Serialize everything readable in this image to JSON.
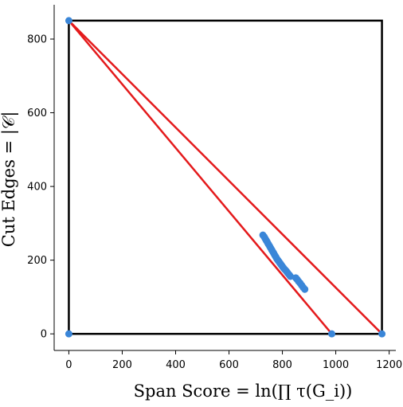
{
  "chart_data": {
    "type": "scatter",
    "title": "",
    "xlabel": "Span Score = ln(∏ τ(G_i))",
    "ylabel": "Cut Edges = |𝒞|",
    "xlim": [
      -55,
      1225
    ],
    "ylim": [
      -45,
      893
    ],
    "xticks": [
      0,
      200,
      400,
      600,
      800,
      1000,
      1200
    ],
    "yticks": [
      0,
      200,
      400,
      600,
      800
    ],
    "grid": false,
    "legend": "none",
    "colors": {
      "points": "#3a86d8",
      "red_lines": "#e41a1c",
      "box": "#000000"
    },
    "box": {
      "x": [
        0,
        1173
      ],
      "y": [
        0,
        850
      ]
    },
    "red_lines": [
      {
        "from": [
          0,
          850
        ],
        "to": [
          985,
          0
        ]
      },
      {
        "from": [
          0,
          850
        ],
        "to": [
          1173,
          0
        ]
      }
    ],
    "corner_points": [
      {
        "x": 0,
        "y": 850
      },
      {
        "x": 0,
        "y": 0
      },
      {
        "x": 985,
        "y": 0
      },
      {
        "x": 1173,
        "y": 0
      }
    ],
    "points": [
      {
        "x": 727,
        "y": 268
      },
      {
        "x": 732,
        "y": 263
      },
      {
        "x": 736,
        "y": 258
      },
      {
        "x": 740,
        "y": 253
      },
      {
        "x": 744,
        "y": 248
      },
      {
        "x": 748,
        "y": 243
      },
      {
        "x": 752,
        "y": 238
      },
      {
        "x": 756,
        "y": 233
      },
      {
        "x": 760,
        "y": 228
      },
      {
        "x": 764,
        "y": 223
      },
      {
        "x": 768,
        "y": 218
      },
      {
        "x": 772,
        "y": 213
      },
      {
        "x": 776,
        "y": 208
      },
      {
        "x": 780,
        "y": 203
      },
      {
        "x": 784,
        "y": 199
      },
      {
        "x": 788,
        "y": 195
      },
      {
        "x": 792,
        "y": 191
      },
      {
        "x": 796,
        "y": 187
      },
      {
        "x": 800,
        "y": 183
      },
      {
        "x": 805,
        "y": 178
      },
      {
        "x": 810,
        "y": 174
      },
      {
        "x": 815,
        "y": 170
      },
      {
        "x": 820,
        "y": 165
      },
      {
        "x": 826,
        "y": 160
      },
      {
        "x": 830,
        "y": 156
      },
      {
        "x": 850,
        "y": 152
      },
      {
        "x": 855,
        "y": 148
      },
      {
        "x": 860,
        "y": 143
      },
      {
        "x": 866,
        "y": 138
      },
      {
        "x": 872,
        "y": 132
      },
      {
        "x": 878,
        "y": 126
      },
      {
        "x": 884,
        "y": 121
      }
    ]
  }
}
